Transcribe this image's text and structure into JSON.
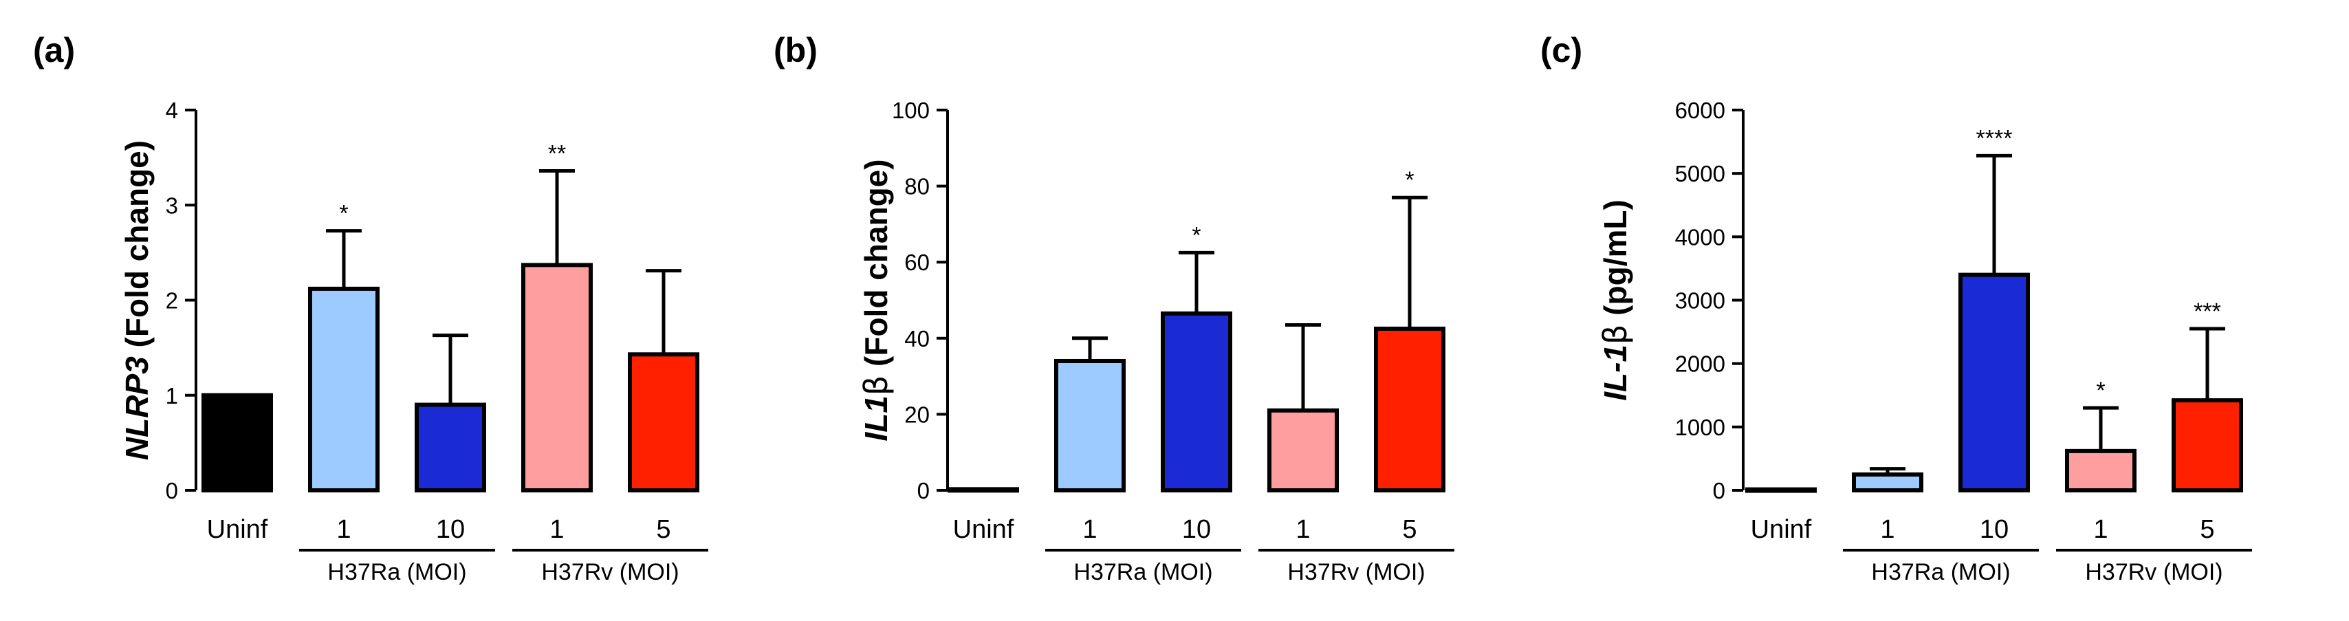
{
  "chart_data": [
    {
      "type": "bar",
      "panel": "(a)",
      "ylabel": {
        "gene": "NLRP3",
        "rest": " (Fold change)"
      },
      "ylim": [
        0,
        4
      ],
      "yticks": [
        0,
        1,
        2,
        3,
        4
      ],
      "categories": [
        "Uninf",
        "1",
        "10",
        "1",
        "5"
      ],
      "groups": [
        {
          "label": "H37Ra (MOI)",
          "categories": [
            1,
            2
          ]
        },
        {
          "label": "H37Rv (MOI)",
          "categories": [
            3,
            4
          ]
        }
      ],
      "values": [
        1.0,
        2.12,
        0.9,
        2.37,
        1.43
      ],
      "errors": [
        0,
        0.61,
        0.73,
        0.99,
        0.88
      ],
      "colors": [
        "#000000",
        "#9ecbff",
        "#1a2bd6",
        "#ff9e9e",
        "#ff2000"
      ],
      "significance": [
        "",
        "*",
        "",
        "**",
        ""
      ]
    },
    {
      "type": "bar",
      "panel": "(b)",
      "ylabel": {
        "gene": "IL1",
        "greek": "β",
        "rest": " (Fold change)"
      },
      "ylim": [
        0,
        100
      ],
      "yticks": [
        0,
        20,
        40,
        60,
        80,
        100
      ],
      "categories": [
        "Uninf",
        "1",
        "10",
        "1",
        "5"
      ],
      "groups": [
        {
          "label": "H37Ra (MOI)",
          "categories": [
            1,
            2
          ]
        },
        {
          "label": "H37Rv (MOI)",
          "categories": [
            3,
            4
          ]
        }
      ],
      "values": [
        0.3,
        34,
        46.5,
        21,
        42.5
      ],
      "errors": [
        0,
        6,
        16,
        22.5,
        34.5
      ],
      "colors": [
        "#000000",
        "#9ecbff",
        "#1a2bd6",
        "#ff9e9e",
        "#ff2000"
      ],
      "significance": [
        "",
        "",
        "*",
        "",
        "*"
      ]
    },
    {
      "type": "bar",
      "panel": "(c)",
      "ylabel": {
        "gene": "IL-1",
        "greek": "β",
        "rest": " (pg/mL)"
      },
      "ylim": [
        0,
        6000
      ],
      "yticks": [
        0,
        1000,
        2000,
        3000,
        4000,
        5000,
        6000
      ],
      "categories": [
        "Uninf",
        "1",
        "10",
        "1",
        "5"
      ],
      "groups": [
        {
          "label": "H37Ra (MOI)",
          "categories": [
            1,
            2
          ]
        },
        {
          "label": "H37Rv (MOI)",
          "categories": [
            3,
            4
          ]
        }
      ],
      "values": [
        15,
        250,
        3400,
        620,
        1420
      ],
      "errors": [
        0,
        90,
        1880,
        680,
        1130
      ],
      "colors": [
        "#000000",
        "#9ecbff",
        "#1a2bd6",
        "#ff9e9e",
        "#ff2000"
      ],
      "significance": [
        "",
        "",
        "****",
        "*",
        "***"
      ]
    }
  ]
}
